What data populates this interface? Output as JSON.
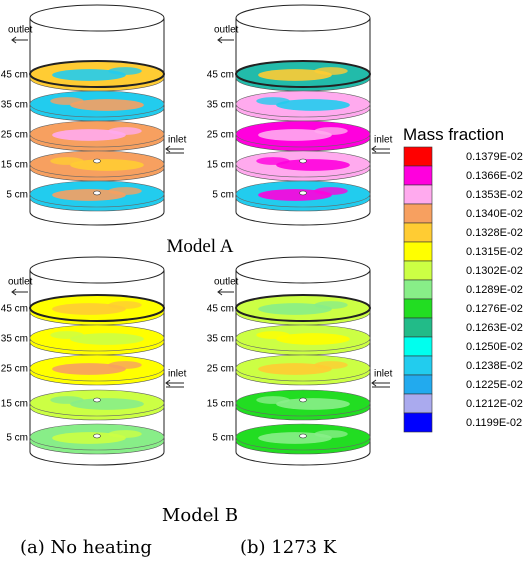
{
  "models": [
    {
      "name": "Model A",
      "panels": [
        {
          "outlet": "outlet",
          "inlet": "inlet",
          "levels": [
            "45 cm",
            "35 cm",
            "25 cm",
            "15 cm",
            "5 cm"
          ]
        },
        {
          "outlet": "outlet",
          "inlet": "inlet",
          "levels": [
            "45 cm",
            "35 cm",
            "25 cm",
            "15 cm",
            "5 cm"
          ]
        }
      ]
    },
    {
      "name": "Model B",
      "panels": [
        {
          "outlet": "outlet",
          "inlet": "inlet",
          "levels": [
            "45 cm",
            "35 cm",
            "25 cm",
            "15 cm",
            "5 cm"
          ]
        },
        {
          "outlet": "outlet",
          "inlet": "inlet",
          "levels": [
            "45 cm",
            "35 cm",
            "25 cm",
            "15 cm",
            "5 cm"
          ]
        }
      ]
    }
  ],
  "captions": [
    "(a) No heating",
    "(b) 1273 K"
  ],
  "legend": {
    "title": "Mass fraction",
    "entries": [
      {
        "label": "0.1379E-02",
        "color": "#ff0000"
      },
      {
        "label": "0.1366E-02",
        "color": "#ff00dd"
      },
      {
        "label": "0.1353E-02",
        "color": "#ffaaee"
      },
      {
        "label": "0.1340E-02",
        "color": "#f7a060"
      },
      {
        "label": "0.1328E-02",
        "color": "#ffcc33"
      },
      {
        "label": "0.1315E-02",
        "color": "#ffff00"
      },
      {
        "label": "0.1302E-02",
        "color": "#ccff44"
      },
      {
        "label": "0.1289E-02",
        "color": "#88ee88"
      },
      {
        "label": "0.1276E-02",
        "color": "#22dd22"
      },
      {
        "label": "0.1263E-02",
        "color": "#22bb88"
      },
      {
        "label": "0.1250E-02",
        "color": "#00ffee"
      },
      {
        "label": "0.1238E-02",
        "color": "#22ccee"
      },
      {
        "label": "0.1225E-02",
        "color": "#22aaee"
      },
      {
        "label": "0.1212E-02",
        "color": "#aaaaee"
      },
      {
        "label": "0.1199E-02",
        "color": "#0000ff"
      }
    ]
  }
}
